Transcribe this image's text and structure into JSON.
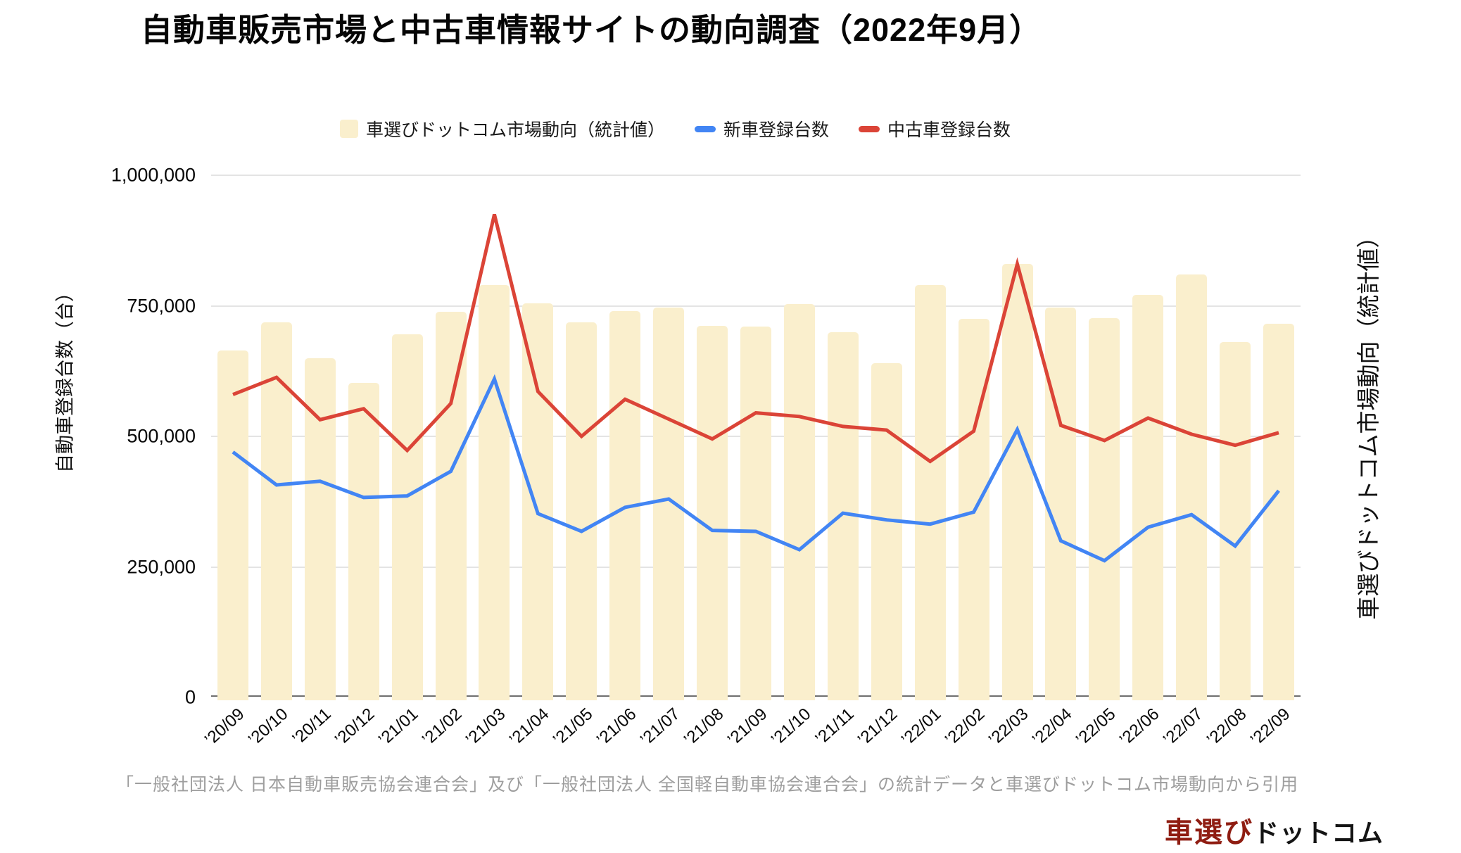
{
  "title": "自動車販売市場と中古車情報サイトの動向調査（2022年9月）",
  "legend": [
    {
      "label": "車選びドットコム市場動向（統計値）",
      "swatch": "square",
      "color": "#FAEFCD"
    },
    {
      "label": "新車登録台数",
      "swatch": "line",
      "color": "#4285F4"
    },
    {
      "label": "中古車登録台数",
      "swatch": "line",
      "color": "#DB4437"
    }
  ],
  "left_axis_title": "自動車登録台数（台）",
  "right_axis_title": "車選びドットコム市場動向（統計値）",
  "source_note": "「一般社団法人 日本自動車販売協会連合会」及び「一般社団法人 全国軽自動車協会連合会」の統計データと車選びドットコム市場動向から引用",
  "logo": {
    "primary": "車選び",
    "secondary": "ドットコム",
    "primary_color": "#8F1D12"
  },
  "chart_data": {
    "type": "bar+line",
    "categories": [
      "’20/09",
      "’20/10",
      "’20/11",
      "’20/12",
      "’21/01",
      "’21/02",
      "’21/03",
      "’21/04",
      "’21/05",
      "’21/06",
      "’21/07",
      "’21/08",
      "’21/09",
      "’21/10",
      "’21/11",
      "’21/12",
      "’22/01",
      "’22/02",
      "’22/03",
      "’22/04",
      "’22/05",
      "’22/06",
      "’22/07",
      "’22/08",
      "’22/09"
    ],
    "series": [
      {
        "name": "車選びドットコム市場動向（統計値）",
        "type": "bar",
        "color": "#FAEFCD",
        "values": [
          665000,
          719000,
          650000,
          603000,
          695000,
          739000,
          790000,
          755000,
          719000,
          740000,
          747000,
          712000,
          710000,
          753000,
          699000,
          640000,
          790000,
          725000,
          830000,
          746000,
          727000,
          771000,
          810000,
          680000,
          715000
        ]
      },
      {
        "name": "新車登録台数",
        "type": "line",
        "color": "#4285F4",
        "values": [
          470000,
          407000,
          414000,
          383000,
          386000,
          433000,
          610000,
          352000,
          318000,
          364000,
          380000,
          320000,
          318000,
          283000,
          353000,
          340000,
          332000,
          355000,
          513000,
          300000,
          262000,
          326000,
          350000,
          290000,
          396000
        ]
      },
      {
        "name": "中古車登録台数",
        "type": "line",
        "color": "#DB4437",
        "values": [
          580000,
          613000,
          532000,
          553000,
          473000,
          563000,
          925000,
          586000,
          500000,
          571000,
          533000,
          495000,
          545000,
          538000,
          519000,
          512000,
          452000,
          510000,
          830000,
          521000,
          492000,
          535000,
          504000,
          483000,
          507000
        ]
      }
    ],
    "y_axis": {
      "min": 0,
      "max": 1000000,
      "tick_interval": 250000,
      "tick_labels": [
        "0",
        "250,000",
        "500,000",
        "750,000",
        "1,000,000"
      ]
    },
    "grid": true,
    "legend_position": "top"
  }
}
